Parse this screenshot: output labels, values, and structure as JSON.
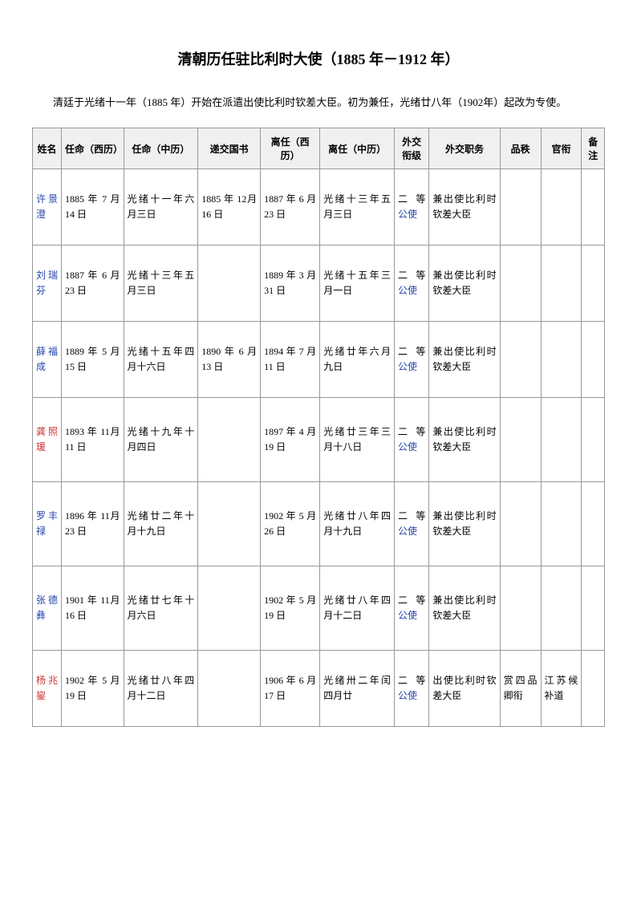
{
  "title": "清朝历任驻比利时大使（1885 年－1912 年）",
  "intro": "清廷于光绪十一年（1885 年）开始在派遣出使比利时钦差大臣。初为兼任，光绪廿八年（1902年）起改为专使。",
  "table": {
    "columns": [
      "姓名",
      "任命（西历）",
      "任命（中历）",
      "递交国书",
      "离任（西历）",
      "离任（中历）",
      "外交衔级",
      "外交职务",
      "品秩",
      "官衔",
      "备注"
    ],
    "rows": [
      {
        "name": "许景澄",
        "name_class": "name-link",
        "appoint_west": "1885 年 7 月14 日",
        "appoint_ch": "光绪十一年六月三日",
        "credentials": "1885 年 12月 16 日",
        "leave_west": "1887 年 6 月23 日",
        "leave_ch": "光绪十三年五月三日",
        "rank": "二等公使",
        "duty": "兼出使比利时钦差大臣",
        "pinzhi": "",
        "title_col": "",
        "note": ""
      },
      {
        "name": "刘瑞芬",
        "name_class": "name-link",
        "appoint_west": "1887 年 6 月23 日",
        "appoint_ch": "光绪十三年五月三日",
        "credentials": "",
        "leave_west": "1889 年 3 月31 日",
        "leave_ch": "光绪十五年三月一日",
        "rank": "二等公使",
        "duty": "兼出使比利时钦差大臣",
        "pinzhi": "",
        "title_col": "",
        "note": ""
      },
      {
        "name": "薛福成",
        "name_class": "name-link",
        "appoint_west": "1889 年 5 月15 日",
        "appoint_ch": "光绪十五年四月十六日",
        "credentials": "1890 年 6 月13 日",
        "leave_west": "1894 年 7 月11 日",
        "leave_ch": "光绪廿年六月九日",
        "rank": "二等公使",
        "duty": "兼出使比利时钦差大臣",
        "pinzhi": "",
        "title_col": "",
        "note": ""
      },
      {
        "name": "龚照瑗",
        "name_class": "name-red",
        "appoint_west": "1893 年 11月 11 日",
        "appoint_ch": "光绪十九年十月四日",
        "credentials": "",
        "leave_west": "1897 年 4 月19 日",
        "leave_ch": "光绪廿三年三月十八日",
        "rank": "二等公使",
        "duty": "兼出使比利时钦差大臣",
        "pinzhi": "",
        "title_col": "",
        "note": ""
      },
      {
        "name": "罗丰禄",
        "name_class": "name-link",
        "appoint_west": "1896 年 11月 23 日",
        "appoint_ch": "光绪廿二年十月十九日",
        "credentials": "",
        "leave_west": "1902 年 5 月26 日",
        "leave_ch": "光绪廿八年四月十九日",
        "rank": "二等公使",
        "duty": "兼出使比利时钦差大臣",
        "pinzhi": "",
        "title_col": "",
        "note": ""
      },
      {
        "name": "张德彝",
        "name_class": "name-link",
        "appoint_west": "1901 年 11月 16 日",
        "appoint_ch": "光绪廿七年十月六日",
        "credentials": "",
        "leave_west": "1902 年 5 月19 日",
        "leave_ch": "光绪廿八年四月十二日",
        "rank": "二等公使",
        "duty": "兼出使比利时钦差大臣",
        "pinzhi": "",
        "title_col": "",
        "note": ""
      },
      {
        "name": "杨兆鋆",
        "name_class": "name-red",
        "appoint_west": "1902 年 5 月19 日",
        "appoint_ch": "光绪廿八年四月十二日",
        "credentials": "",
        "leave_west": "1906 年 6 月17 日",
        "leave_ch": "光绪卅二年闰四月廿",
        "rank": "二等公使",
        "duty": "出使比利时钦差大臣",
        "pinzhi": "赏四品卿衔",
        "title_col": "江苏候补道",
        "note": ""
      }
    ]
  }
}
